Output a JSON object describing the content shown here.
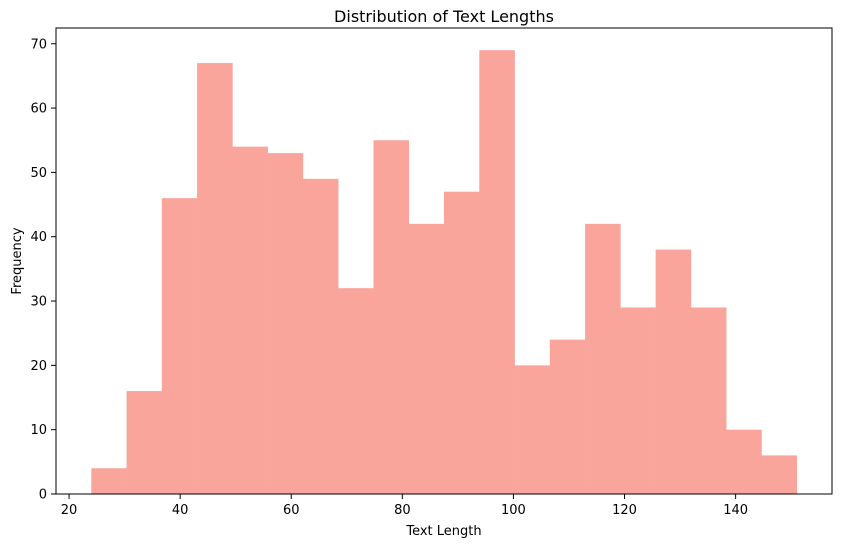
{
  "chart_data": {
    "type": "bar",
    "title": "Distribution of Text Lengths",
    "xlabel": "Text Length",
    "ylabel": "Frequency",
    "bar_color": "#f9a59c",
    "bin_edges": [
      24,
      30.35,
      36.7,
      43.05,
      49.4,
      55.75,
      62.1,
      68.45,
      74.8,
      81.15,
      87.5,
      93.85,
      100.2,
      106.55,
      112.9,
      119.25,
      125.6,
      131.95,
      138.3,
      144.65,
      151
    ],
    "values": [
      4,
      16,
      46,
      67,
      54,
      53,
      49,
      32,
      55,
      42,
      47,
      69,
      20,
      24,
      42,
      29,
      38,
      29,
      10,
      6
    ],
    "xlim": [
      17.65,
      157.35
    ],
    "ylim": [
      0,
      72.45
    ],
    "xticks": [
      20,
      40,
      60,
      80,
      100,
      120,
      140
    ],
    "yticks": [
      0,
      10,
      20,
      30,
      40,
      50,
      60,
      70
    ],
    "grid": false,
    "legend": "none"
  }
}
